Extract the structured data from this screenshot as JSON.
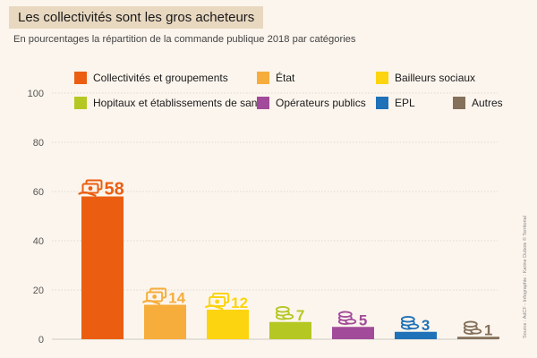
{
  "header": {
    "title": "Les collectivités sont les gros acheteurs",
    "subtitle": "En pourcentages la répartition de la commande publique 2018 par catégories"
  },
  "source": "Source : AdCF - Infographie : Karine Dubois © Territorial",
  "chart_data": {
    "type": "bar",
    "title": "Les collectivités sont les gros acheteurs",
    "subtitle": "En pourcentages la répartition de la commande publique 2018 par catégories",
    "ylim": [
      0,
      100
    ],
    "yticks": [
      0,
      20,
      40,
      60,
      80,
      100
    ],
    "ytick_labels": [
      "0",
      "20",
      "40",
      "60",
      "80",
      "100"
    ],
    "grid": true,
    "legend_position": "top",
    "categories": [
      "Collectivités et groupements",
      "État",
      "Bailleurs sociaux",
      "Hopitaux et établissements de santé",
      "Opérateurs publics",
      "EPL",
      "Autres"
    ],
    "values": [
      58,
      14,
      12,
      7,
      5,
      3,
      1
    ],
    "value_labels": [
      "58",
      "14",
      "12",
      "7",
      "5",
      "3",
      "1"
    ],
    "colors": [
      "#eb5e11",
      "#f6ad3c",
      "#fcd40f",
      "#b5c722",
      "#a24b9a",
      "#1f71b8",
      "#84705b"
    ],
    "icons": [
      "money-icon",
      "money-icon",
      "money-icon",
      "coins-icon",
      "coins-icon",
      "coins-icon",
      "coins-icon"
    ]
  }
}
